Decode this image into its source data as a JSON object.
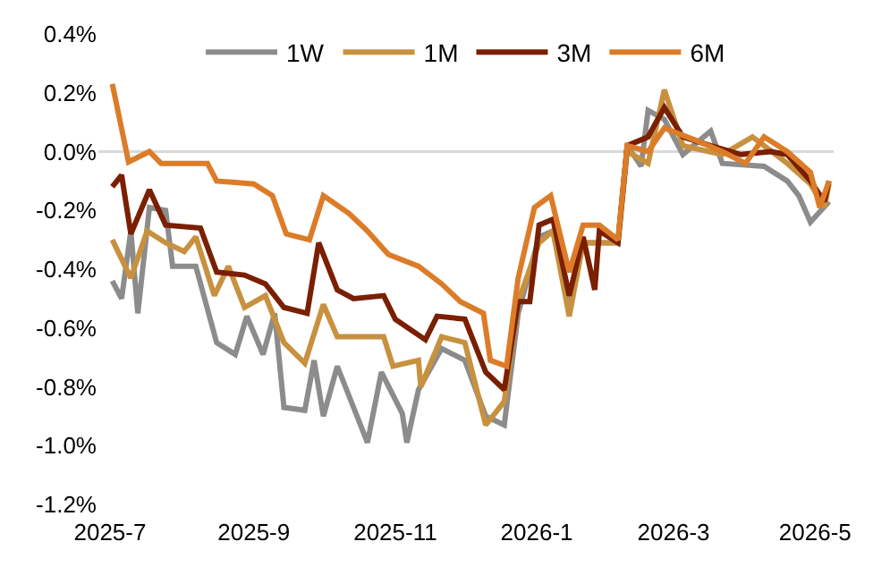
{
  "chart_data": {
    "type": "line",
    "legend": "top",
    "grid": false,
    "marker": "none",
    "line_style": "solid",
    "xlim": [
      "2025-06-26",
      "2026-05-09"
    ],
    "xticks": [
      {
        "value": "2025-07-01",
        "label": "2025-7"
      },
      {
        "value": "2025-09-01",
        "label": "2025-9"
      },
      {
        "value": "2025-11-01",
        "label": "2025-11"
      },
      {
        "value": "2026-01-01",
        "label": "2026-1"
      },
      {
        "value": "2026-03-01",
        "label": "2026-3"
      },
      {
        "value": "2026-05-01",
        "label": "2026-5"
      }
    ],
    "ylim": [
      -1.2,
      0.4
    ],
    "ref_lines": [
      {
        "axis": "y",
        "value": 0,
        "color": "#d9d9d9"
      }
    ],
    "yticks": [
      {
        "value": 0.4,
        "label": "0.4%"
      },
      {
        "value": 0.2,
        "label": "0.2%"
      },
      {
        "value": 0,
        "label": "0.0%"
      },
      {
        "value": -0.2,
        "label": "-0.2%"
      },
      {
        "value": -0.4,
        "label": "-0.4%"
      },
      {
        "value": -0.6,
        "label": "-0.6%"
      },
      {
        "value": -0.8,
        "label": "-0.8%"
      },
      {
        "value": -1.0,
        "label": "-1.0%"
      },
      {
        "value": -1.2,
        "label": "-1.2%"
      }
    ],
    "series": [
      {
        "name": "1W",
        "color": "#8c8c8c",
        "x": [
          "2025-07-02",
          "2025-07-06",
          "2025-07-10",
          "2025-07-13",
          "2025-07-18",
          "2025-07-25",
          "2025-07-28",
          "2025-08-07",
          "2025-08-16",
          "2025-08-24",
          "2025-08-29",
          "2025-09-05",
          "2025-09-10",
          "2025-09-14",
          "2025-09-23",
          "2025-09-27",
          "2025-10-01",
          "2025-10-07",
          "2025-10-14",
          "2025-10-20",
          "2025-10-26",
          "2025-11-04",
          "2025-11-06",
          "2025-11-11",
          "2025-11-21",
          "2025-12-01",
          "2025-12-10",
          "2025-12-18",
          "2025-12-24",
          "2026-01-02",
          "2026-01-08",
          "2026-01-15",
          "2026-01-21",
          "2026-02-05",
          "2026-02-09",
          "2026-02-15",
          "2026-02-18",
          "2026-02-25",
          "2026-03-05",
          "2026-03-17",
          "2026-03-22",
          "2026-04-09",
          "2026-04-19",
          "2026-04-24",
          "2026-04-29",
          "2026-05-07"
        ],
        "values": [
          -0.44,
          -0.5,
          -0.27,
          -0.55,
          -0.19,
          -0.2,
          -0.39,
          -0.39,
          -0.65,
          -0.69,
          -0.56,
          -0.69,
          -0.55,
          -0.87,
          -0.88,
          -0.71,
          -0.9,
          -0.73,
          -0.87,
          -0.99,
          -0.75,
          -0.89,
          -0.99,
          -0.81,
          -0.67,
          -0.71,
          -0.9,
          -0.93,
          -0.55,
          -0.29,
          -0.27,
          -0.53,
          -0.31,
          -0.31,
          0.02,
          -0.05,
          0.14,
          0.11,
          -0.01,
          0.07,
          -0.04,
          -0.05,
          -0.1,
          -0.15,
          -0.24,
          -0.17
        ]
      },
      {
        "name": "1M",
        "color": "#c8913f",
        "x": [
          "2025-07-02",
          "2025-07-10",
          "2025-07-17",
          "2025-07-25",
          "2025-08-02",
          "2025-08-07",
          "2025-08-15",
          "2025-08-21",
          "2025-08-28",
          "2025-09-06",
          "2025-09-14",
          "2025-09-23",
          "2025-10-01",
          "2025-10-07",
          "2025-10-20",
          "2025-10-27",
          "2025-10-31",
          "2025-11-11",
          "2025-11-12",
          "2025-11-21",
          "2025-12-01",
          "2025-12-10",
          "2025-12-18",
          "2025-12-24",
          "2026-01-02",
          "2026-01-08",
          "2026-01-15",
          "2026-01-21",
          "2026-02-05",
          "2026-02-09",
          "2026-02-18",
          "2026-02-25",
          "2026-03-05",
          "2026-03-22",
          "2026-04-04",
          "2026-04-19",
          "2026-04-29",
          "2026-05-05",
          "2026-05-07"
        ],
        "values": [
          -0.3,
          -0.43,
          -0.27,
          -0.31,
          -0.34,
          -0.29,
          -0.49,
          -0.39,
          -0.53,
          -0.49,
          -0.65,
          -0.72,
          -0.52,
          -0.63,
          -0.63,
          -0.63,
          -0.73,
          -0.71,
          -0.8,
          -0.63,
          -0.65,
          -0.93,
          -0.85,
          -0.51,
          -0.31,
          -0.27,
          -0.56,
          -0.31,
          -0.31,
          0.0,
          -0.04,
          0.21,
          0.02,
          -0.01,
          0.05,
          -0.04,
          -0.11,
          -0.19,
          -0.11
        ]
      },
      {
        "name": "3M",
        "color": "#7a1f00",
        "x": [
          "2025-07-02",
          "2025-07-06",
          "2025-07-10",
          "2025-07-18",
          "2025-07-25",
          "2025-08-09",
          "2025-08-16",
          "2025-08-28",
          "2025-09-06",
          "2025-09-14",
          "2025-09-24",
          "2025-09-29",
          "2025-10-07",
          "2025-10-14",
          "2025-10-27",
          "2025-11-01",
          "2025-11-14",
          "2025-11-19",
          "2025-12-01",
          "2025-12-10",
          "2025-12-18",
          "2025-12-24",
          "2025-12-29",
          "2026-01-02",
          "2026-01-08",
          "2026-01-15",
          "2026-01-21",
          "2026-01-26",
          "2026-01-28",
          "2026-02-05",
          "2026-02-09",
          "2026-02-18",
          "2026-02-25",
          "2026-03-05",
          "2026-03-17",
          "2026-03-30",
          "2026-04-12",
          "2026-04-19",
          "2026-04-29",
          "2026-05-05",
          "2026-05-07"
        ],
        "values": [
          -0.12,
          -0.08,
          -0.28,
          -0.13,
          -0.25,
          -0.26,
          -0.41,
          -0.42,
          -0.45,
          -0.53,
          -0.55,
          -0.31,
          -0.47,
          -0.5,
          -0.49,
          -0.57,
          -0.64,
          -0.56,
          -0.57,
          -0.75,
          -0.81,
          -0.51,
          -0.51,
          -0.25,
          -0.23,
          -0.49,
          -0.29,
          -0.47,
          -0.27,
          -0.31,
          0.02,
          0.05,
          0.15,
          0.05,
          0.02,
          -0.01,
          0.0,
          -0.01,
          -0.1,
          -0.17,
          -0.1
        ]
      },
      {
        "name": "6M",
        "color": "#dc7c28",
        "x": [
          "2025-07-02",
          "2025-07-09",
          "2025-07-18",
          "2025-07-23",
          "2025-08-12",
          "2025-08-16",
          "2025-09-01",
          "2025-09-09",
          "2025-09-15",
          "2025-09-25",
          "2025-10-01",
          "2025-10-12",
          "2025-10-20",
          "2025-10-29",
          "2025-11-11",
          "2025-11-21",
          "2025-11-29",
          "2025-12-09",
          "2025-12-12",
          "2025-12-19",
          "2025-12-24",
          "2025-12-31",
          "2026-01-07",
          "2026-01-15",
          "2026-01-21",
          "2026-01-28",
          "2026-02-05",
          "2026-02-09",
          "2026-02-18",
          "2026-02-25",
          "2026-03-10",
          "2026-03-22",
          "2026-04-01",
          "2026-04-09",
          "2026-04-19",
          "2026-04-29",
          "2026-05-03",
          "2026-05-07"
        ],
        "values": [
          0.23,
          -0.035,
          0.0,
          -0.04,
          -0.04,
          -0.1,
          -0.11,
          -0.15,
          -0.28,
          -0.3,
          -0.15,
          -0.21,
          -0.27,
          -0.35,
          -0.39,
          -0.45,
          -0.51,
          -0.55,
          -0.71,
          -0.73,
          -0.43,
          -0.19,
          -0.15,
          -0.41,
          -0.25,
          -0.25,
          -0.3,
          0.02,
          0.0,
          0.08,
          0.04,
          0.0,
          -0.04,
          0.05,
          0.0,
          -0.07,
          -0.19,
          -0.1
        ]
      }
    ]
  }
}
